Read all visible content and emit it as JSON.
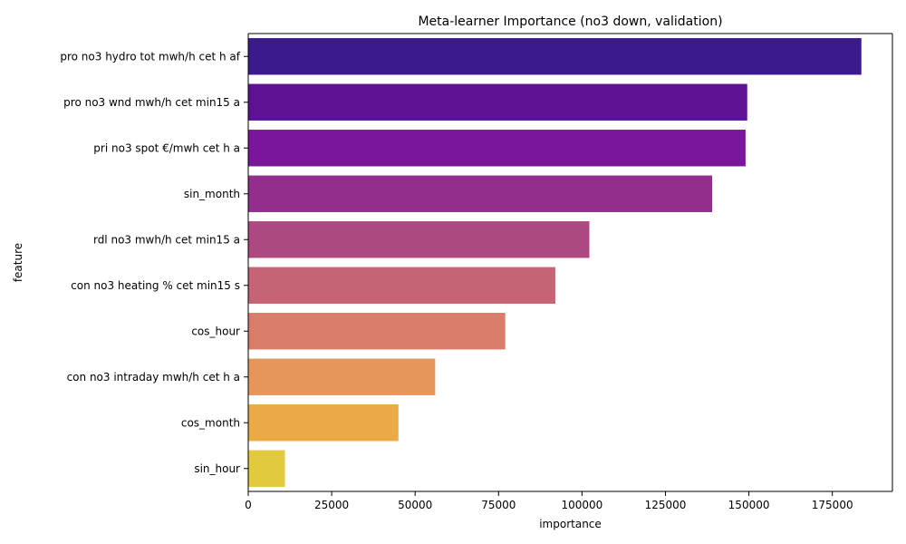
{
  "chart_data": {
    "type": "bar",
    "orientation": "horizontal",
    "title": "Meta-learner Importance (no3 down, validation)",
    "xlabel": "importance",
    "ylabel": "feature",
    "xlim": [
      0,
      193000
    ],
    "xticks": [
      0,
      25000,
      50000,
      75000,
      100000,
      125000,
      150000,
      175000
    ],
    "xtick_labels": [
      "0",
      "25000",
      "50000",
      "75000",
      "100000",
      "125000",
      "150000",
      "175000"
    ],
    "categories": [
      "pro no3 hydro tot mwh/h cet h af",
      "pro no3 wnd mwh/h cet min15 a",
      "pri no3 spot €/mwh cet h a",
      "sin_month",
      "rdl no3 mwh/h cet min15 a",
      "con no3 heating % cet min15 s",
      "cos_hour",
      "con no3 intraday mwh/h cet h a",
      "cos_month",
      "sin_hour"
    ],
    "values": [
      183700,
      149500,
      149000,
      139000,
      102200,
      92000,
      77000,
      56000,
      45000,
      11000
    ],
    "colors": [
      "#3b1a8d",
      "#5d1294",
      "#7a169a",
      "#922e8b",
      "#ad4980",
      "#c56474",
      "#d97c6a",
      "#e6965a",
      "#eaaa45",
      "#e3c93d"
    ],
    "grid": false,
    "legend": "none"
  }
}
